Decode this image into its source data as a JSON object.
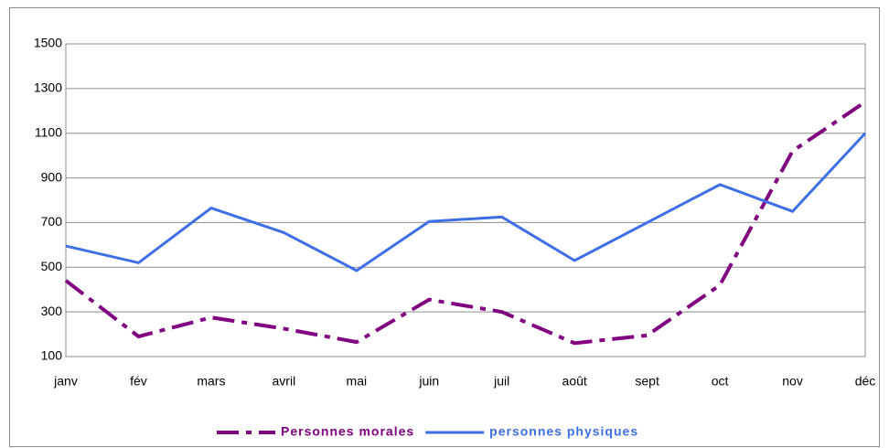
{
  "chart_data": {
    "type": "line",
    "categories": [
      "janv",
      "fév",
      "mars",
      "avril",
      "mai",
      "juin",
      "juil",
      "août",
      "sept",
      "oct",
      "nov",
      "déc"
    ],
    "series": [
      {
        "name": "Personnes morales",
        "color": "#800080",
        "dashed": true,
        "values": [
          440,
          190,
          275,
          225,
          165,
          355,
          300,
          160,
          195,
          420,
          1020,
          1240
        ]
      },
      {
        "name": "personnes physiques",
        "color": "#3f6fe6",
        "dashed": false,
        "values": [
          595,
          520,
          765,
          655,
          485,
          705,
          725,
          530,
          700,
          870,
          750,
          1100
        ]
      }
    ],
    "ylim": [
      100,
      1500
    ],
    "yticks": [
      100,
      300,
      500,
      700,
      900,
      1100,
      1300,
      1500
    ],
    "grid": true,
    "legend": "bottom"
  }
}
